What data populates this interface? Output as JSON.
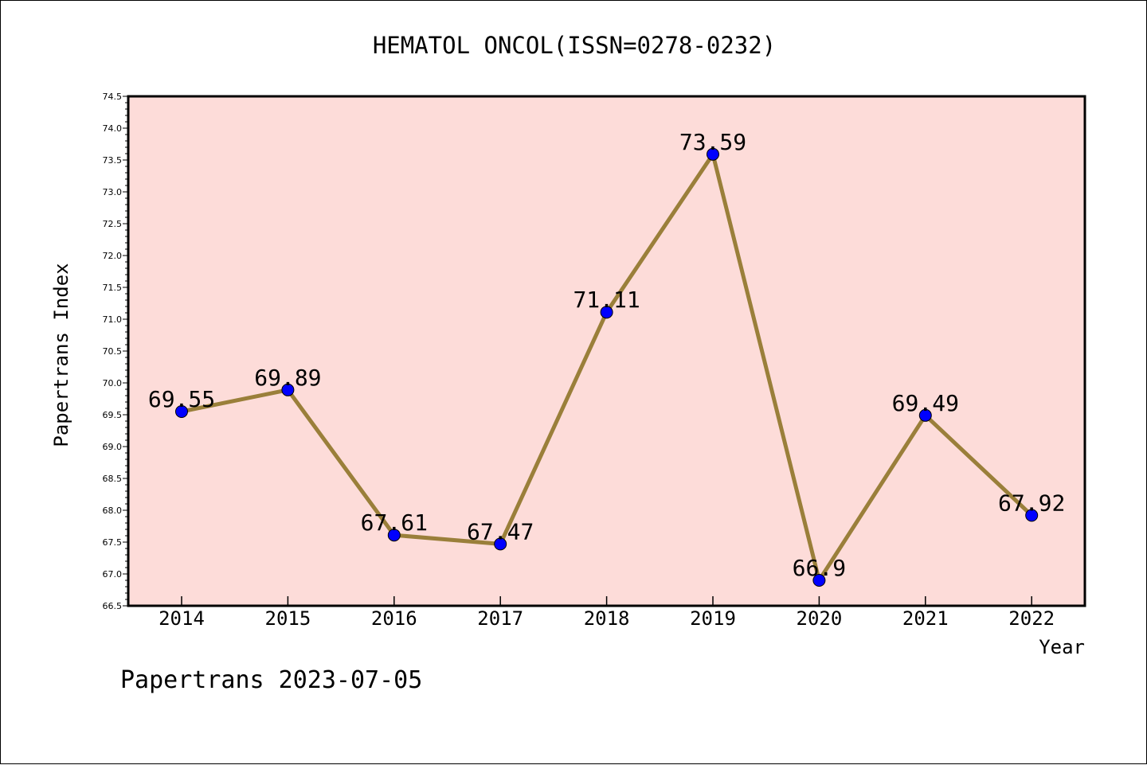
{
  "chart_data": {
    "type": "line",
    "title": "HEMATOL ONCOL(ISSN=0278-0232)",
    "xlabel": "Year",
    "ylabel": "Papertrans Index",
    "categories": [
      "2014",
      "2015",
      "2016",
      "2017",
      "2018",
      "2019",
      "2020",
      "2021",
      "2022"
    ],
    "series": [
      {
        "values": [
          69.55,
          69.89,
          67.61,
          67.47,
          71.11,
          73.59,
          66.9,
          69.49,
          67.92
        ],
        "labels": [
          "69.55",
          "69.89",
          "67.61",
          "67.47",
          "71.11",
          "73.59",
          "66.9",
          "69.49",
          "67.92"
        ]
      }
    ],
    "ylim": [
      66.5,
      74.5
    ],
    "yticks": [
      "66.5",
      "67.0",
      "67.5",
      "68.0",
      "68.5",
      "69.0",
      "69.5",
      "70.0",
      "70.5",
      "71.0",
      "71.5",
      "72.0",
      "72.5",
      "73.0",
      "73.5",
      "74.0",
      "74.5"
    ],
    "grid": false,
    "legend": "none"
  },
  "footer": "Papertrans 2023-07-05",
  "colors": {
    "plot_background": "#fddcd9",
    "line": "#9a7f3a",
    "marker": "#0000ff",
    "axis": "#000000"
  }
}
